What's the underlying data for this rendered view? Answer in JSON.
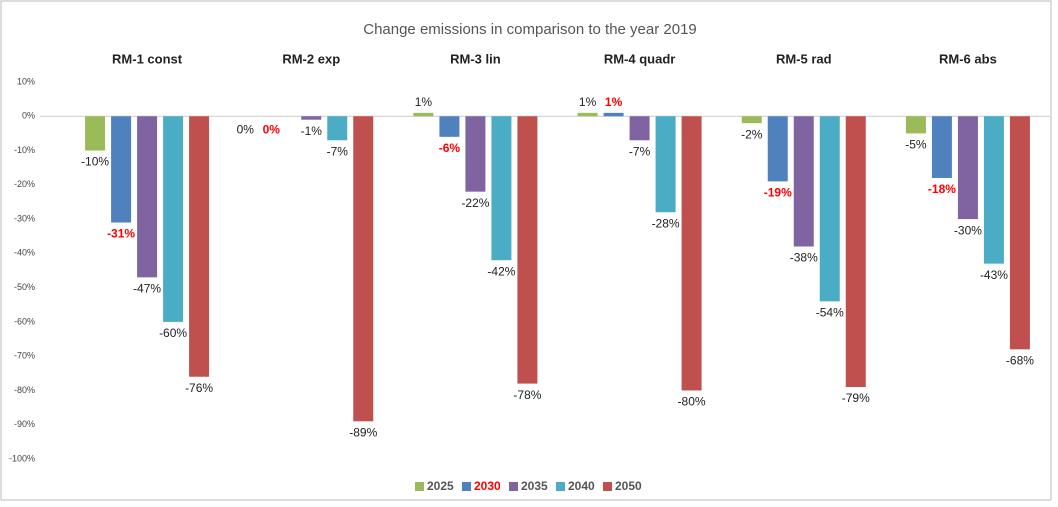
{
  "chart_data": {
    "type": "bar",
    "title": "Change emissions in comparison to the year 2019",
    "categories": [
      "RM-1 const",
      "RM-2 exp",
      "RM-3 lin",
      "RM-4 quadr",
      "RM-5 rad",
      "RM-6 abs"
    ],
    "series": [
      {
        "name": "2025",
        "color": "#9bbb59",
        "values": [
          -10,
          0,
          1,
          1,
          -2,
          -5
        ],
        "value_labels": [
          "-10%",
          "0%",
          "1%",
          "1%",
          "-2%",
          "-5%"
        ]
      },
      {
        "name": "2030",
        "color": "#4f81bd",
        "label_color": "#ff0000",
        "label_bold": true,
        "values": [
          -31,
          0,
          -6,
          1,
          -19,
          -18
        ],
        "value_labels": [
          "-31%",
          "0%",
          "-6%",
          "1%",
          "-19%",
          "-18%"
        ]
      },
      {
        "name": "2035",
        "color": "#8064a2",
        "values": [
          -47,
          -1,
          -22,
          -7,
          -38,
          -30
        ],
        "value_labels": [
          "-47%",
          "-1%",
          "-22%",
          "-7%",
          "-38%",
          "-30%"
        ]
      },
      {
        "name": "2040",
        "color": "#4bacc6",
        "values": [
          -60,
          -7,
          -42,
          -28,
          -54,
          -43
        ],
        "value_labels": [
          "-60%",
          "-7%",
          "-42%",
          "-28%",
          "-54%",
          "-43%"
        ]
      },
      {
        "name": "2050",
        "color": "#c0504d",
        "values": [
          -76,
          -89,
          -78,
          -80,
          -79,
          -68
        ],
        "value_labels": [
          "-76%",
          "-89%",
          "-78%",
          "-80%",
          "-79%",
          "-68%"
        ]
      }
    ],
    "ylim": [
      -100,
      10
    ],
    "yticks": [
      {
        "value": 10,
        "label": "10%"
      },
      {
        "value": 0,
        "label": "0%"
      },
      {
        "value": -10,
        "label": "-10%"
      },
      {
        "value": -20,
        "label": "-20%"
      },
      {
        "value": -30,
        "label": "-30%"
      },
      {
        "value": -40,
        "label": "-40%"
      },
      {
        "value": -50,
        "label": "-50%"
      },
      {
        "value": -60,
        "label": "-60%"
      },
      {
        "value": -70,
        "label": "-70%"
      },
      {
        "value": -80,
        "label": "-80%"
      },
      {
        "value": -90,
        "label": "-90%"
      },
      {
        "value": -100,
        "label": "-100%"
      }
    ],
    "grid": false
  }
}
